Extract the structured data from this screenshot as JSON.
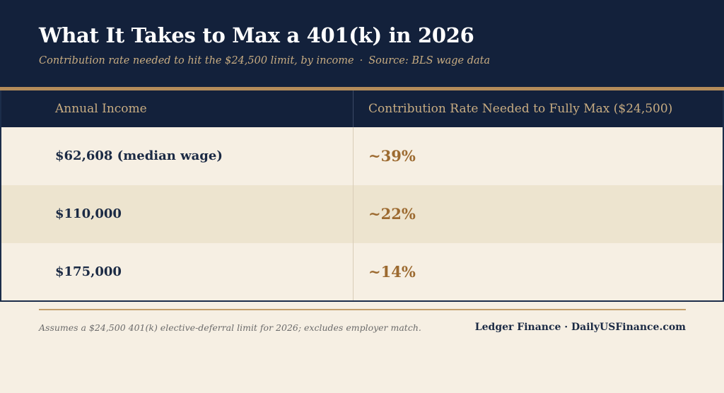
{
  "header": {
    "title": "What It Takes to Max a 401(k) in 2026",
    "subtitle": "Contribution rate needed to hit the $24,500 limit, by income",
    "separator": "·",
    "source": "Source: BLS wage data"
  },
  "table": {
    "columns": [
      "Annual Income",
      "Contribution Rate Needed to Fully Max ($24,500)"
    ],
    "rows": [
      {
        "income": "$62,608 (median wage)",
        "rate": "~39%"
      },
      {
        "income": "$110,000",
        "rate": "~22%"
      },
      {
        "income": "$175,000",
        "rate": "~14%"
      }
    ]
  },
  "footer": {
    "note": "Assumes a $24,500 401(k) elective-deferral limit for 2026; excludes employer match.",
    "brand": "Ledger Finance · DailyUSFinance.com"
  },
  "colors": {
    "header_bg": "#13213b",
    "accent_gold": "#b48c5a",
    "rate_text": "#9c6a30",
    "page_bg": "#f6efe3",
    "alt_row_bg": "#ede4cf"
  }
}
